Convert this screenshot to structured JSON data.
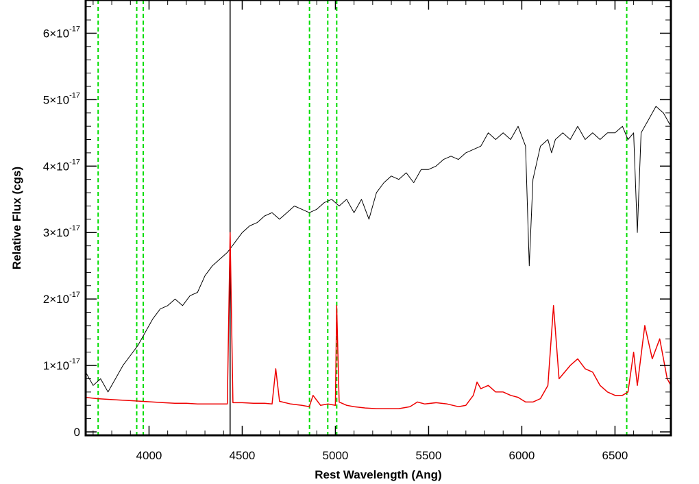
{
  "chart_data": {
    "type": "line",
    "title": "",
    "xlabel": "Rest Wavelength (Ang)",
    "ylabel": "Relative Flux (cgs)",
    "xlim": [
      3660,
      6800
    ],
    "ylim": [
      0,
      6.5e-17
    ],
    "x_ticks": [
      {
        "value": 4000,
        "label": "4000"
      },
      {
        "value": 4500,
        "label": "4500"
      },
      {
        "value": 5000,
        "label": "5000"
      },
      {
        "value": 5500,
        "label": "5500"
      },
      {
        "value": 6000,
        "label": "6000"
      },
      {
        "value": 6500,
        "label": "6500"
      }
    ],
    "y_ticks": [
      {
        "value": 0,
        "mantissa": "0",
        "exponent": ""
      },
      {
        "value": 1e-17,
        "mantissa": "1×10",
        "exponent": "-17"
      },
      {
        "value": 2e-17,
        "mantissa": "2×10",
        "exponent": "-17"
      },
      {
        "value": 3e-17,
        "mantissa": "3×10",
        "exponent": "-17"
      },
      {
        "value": 4e-17,
        "mantissa": "4×10",
        "exponent": "-17"
      },
      {
        "value": 5e-17,
        "mantissa": "5×10",
        "exponent": "-17"
      },
      {
        "value": 6e-17,
        "mantissa": "6×10",
        "exponent": "-17"
      }
    ],
    "vertical_lines": [
      {
        "x": 3727,
        "style": "dashed",
        "color": "#00dd00"
      },
      {
        "x": 3934,
        "style": "dashed",
        "color": "#00dd00"
      },
      {
        "x": 3969,
        "style": "dashed",
        "color": "#00dd00"
      },
      {
        "x": 4861,
        "style": "dashed",
        "color": "#00dd00"
      },
      {
        "x": 4959,
        "style": "dashed",
        "color": "#00dd00"
      },
      {
        "x": 5007,
        "style": "dashed",
        "color": "#00dd00"
      },
      {
        "x": 6563,
        "style": "dashed",
        "color": "#00dd00"
      },
      {
        "x": 4435,
        "style": "solid",
        "color": "#000000"
      }
    ],
    "series": [
      {
        "color": "#000000",
        "x": [
          3660,
          3700,
          3740,
          3780,
          3820,
          3860,
          3900,
          3940,
          3980,
          4020,
          4060,
          4100,
          4140,
          4180,
          4220,
          4260,
          4300,
          4340,
          4380,
          4420,
          4460,
          4500,
          4540,
          4580,
          4620,
          4660,
          4700,
          4740,
          4780,
          4820,
          4860,
          4900,
          4940,
          4980,
          5020,
          5060,
          5100,
          5140,
          5180,
          5220,
          5260,
          5300,
          5340,
          5380,
          5420,
          5460,
          5500,
          5540,
          5580,
          5620,
          5660,
          5700,
          5740,
          5780,
          5820,
          5860,
          5900,
          5940,
          5980,
          6020,
          6040,
          6060,
          6100,
          6140,
          6160,
          6180,
          6220,
          6260,
          6300,
          6340,
          6380,
          6420,
          6460,
          6500,
          6540,
          6570,
          6600,
          6620,
          6640,
          6680,
          6720,
          6760,
          6800
        ],
        "y": [
          9e-18,
          7e-18,
          8e-18,
          6e-18,
          8e-18,
          1e-17,
          1.15e-17,
          1.3e-17,
          1.5e-17,
          1.7e-17,
          1.85e-17,
          1.9e-17,
          2e-17,
          1.9e-17,
          2.05e-17,
          2.1e-17,
          2.35e-17,
          2.5e-17,
          2.6e-17,
          2.7e-17,
          2.85e-17,
          3e-17,
          3.1e-17,
          3.15e-17,
          3.25e-17,
          3.3e-17,
          3.2e-17,
          3.3e-17,
          3.4e-17,
          3.35e-17,
          3.3e-17,
          3.35e-17,
          3.45e-17,
          3.5e-17,
          3.4e-17,
          3.5e-17,
          3.3e-17,
          3.5e-17,
          3.2e-17,
          3.6e-17,
          3.75e-17,
          3.85e-17,
          3.8e-17,
          3.9e-17,
          3.75e-17,
          3.95e-17,
          3.95e-17,
          4e-17,
          4.1e-17,
          4.15e-17,
          4.1e-17,
          4.2e-17,
          4.25e-17,
          4.3e-17,
          4.5e-17,
          4.4e-17,
          4.5e-17,
          4.4e-17,
          4.6e-17,
          4.3e-17,
          2.5e-17,
          3.8e-17,
          4.3e-17,
          4.4e-17,
          4.2e-17,
          4.4e-17,
          4.5e-17,
          4.4e-17,
          4.6e-17,
          4.4e-17,
          4.5e-17,
          4.4e-17,
          4.5e-17,
          4.5e-17,
          4.6e-17,
          4.4e-17,
          4.5e-17,
          3e-17,
          4.5e-17,
          4.7e-17,
          4.9e-17,
          4.8e-17,
          4.6e-17
        ]
      },
      {
        "color": "#ee0000",
        "x": [
          3660,
          3720,
          3780,
          3840,
          3900,
          3960,
          4020,
          4080,
          4140,
          4200,
          4260,
          4320,
          4380,
          4420,
          4435,
          4450,
          4500,
          4560,
          4620,
          4660,
          4680,
          4700,
          4760,
          4820,
          4860,
          4880,
          4920,
          4960,
          5000,
          5007,
          5020,
          5060,
          5100,
          5160,
          5220,
          5280,
          5340,
          5400,
          5440,
          5480,
          5540,
          5600,
          5660,
          5700,
          5740,
          5760,
          5780,
          5820,
          5860,
          5900,
          5940,
          5980,
          6020,
          6060,
          6100,
          6140,
          6170,
          6200,
          6260,
          6300,
          6340,
          6380,
          6420,
          6460,
          6500,
          6540,
          6570,
          6600,
          6620,
          6660,
          6700,
          6740,
          6780,
          6800
        ],
        "y": [
          5.2e-18,
          5e-18,
          4.9e-18,
          4.8e-18,
          4.7e-18,
          4.6e-18,
          4.5e-18,
          4.4e-18,
          4.3e-18,
          4.3e-18,
          4.2e-18,
          4.2e-18,
          4.2e-18,
          4.2e-18,
          3e-17,
          4.4e-18,
          4.4e-18,
          4.3e-18,
          4.3e-18,
          4.2e-18,
          9.5e-18,
          4.6e-18,
          4.2e-18,
          4e-18,
          3.8e-18,
          5.5e-18,
          4e-18,
          4.2e-18,
          4e-18,
          1.9e-17,
          4.5e-18,
          4e-18,
          3.8e-18,
          3.6e-18,
          3.5e-18,
          3.5e-18,
          3.5e-18,
          3.8e-18,
          4.5e-18,
          4.2e-18,
          4.4e-18,
          4.2e-18,
          3.8e-18,
          4e-18,
          5.5e-18,
          7.5e-18,
          6.5e-18,
          7e-18,
          6e-18,
          6e-18,
          5.5e-18,
          5.2e-18,
          4.5e-18,
          4.5e-18,
          5e-18,
          7e-18,
          1.9e-17,
          8e-18,
          1e-17,
          1.1e-17,
          9.5e-18,
          9e-18,
          7e-18,
          6e-18,
          5.5e-18,
          5.5e-18,
          6e-18,
          1.2e-17,
          7e-18,
          1.6e-17,
          1.1e-17,
          1.4e-17,
          8e-18,
          7e-18
        ]
      }
    ],
    "grid": false,
    "legend": "none"
  }
}
